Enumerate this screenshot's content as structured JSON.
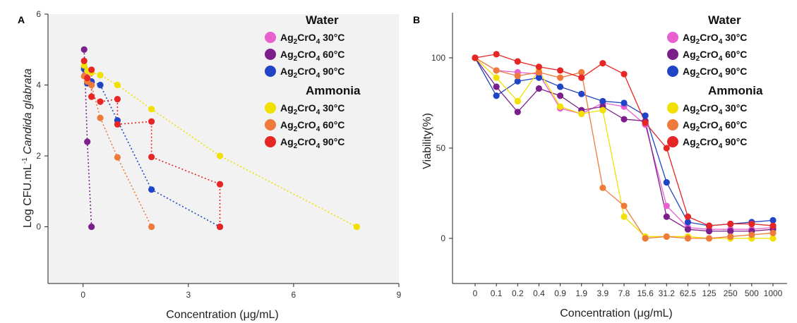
{
  "chart_data": [
    {
      "panel": "A",
      "type": "scatter",
      "xlabel": "Concentration (μg/mL)",
      "ylabel": "Log CFU.mL",
      "ylabel_sup": "-1",
      "ylabel_italic": "Candida glabrata",
      "xlim": [
        -1,
        9
      ],
      "ylim": [
        -1.6,
        6
      ],
      "xticks": [
        0,
        3,
        6,
        9
      ],
      "yticks": [
        0,
        2,
        4,
        6
      ],
      "grid": false,
      "legend_position": "top-right",
      "legend_groups": [
        {
          "title": "Water",
          "entries": [
            {
              "base": "Ag",
              "sub1": "2",
              "mid": "CrO",
              "sub2": "4",
              "temp": "30°C",
              "color": "#e85fcf"
            },
            {
              "base": "Ag",
              "sub1": "2",
              "mid": "CrO",
              "sub2": "4",
              "temp": "60°C",
              "color": "#7b1f8a"
            },
            {
              "base": "Ag",
              "sub1": "2",
              "mid": "CrO",
              "sub2": "4",
              "temp": "90°C",
              "color": "#1f44c6"
            }
          ]
        },
        {
          "title": "Ammonia",
          "entries": [
            {
              "base": "Ag",
              "sub1": "2",
              "mid": "CrO",
              "sub2": "4",
              "temp": "30°C",
              "color": "#f2e000"
            },
            {
              "base": "Ag",
              "sub1": "2",
              "mid": "CrO",
              "sub2": "4",
              "temp": "60°C",
              "color": "#ee7b3a"
            },
            {
              "base": "Ag",
              "sub1": "2",
              "mid": "CrO",
              "sub2": "4",
              "temp": "90°C",
              "color": "#e62525"
            }
          ]
        }
      ],
      "series": [
        {
          "color": "#e85fcf",
          "points": [
            [
              0.03,
              4.5
            ],
            [
              0.06,
              4.3
            ],
            [
              0.12,
              4.1
            ],
            [
              0.24,
              4.0
            ]
          ]
        },
        {
          "color": "#7b1f8a",
          "points": [
            [
              0.03,
              5.0
            ],
            [
              0.12,
              2.4
            ],
            [
              0.24,
              0.0
            ]
          ]
        },
        {
          "color": "#1f44c6",
          "points": [
            [
              0.03,
              4.45
            ],
            [
              0.12,
              4.05
            ],
            [
              0.24,
              4.1
            ],
            [
              0.49,
              4.0
            ],
            [
              0.98,
              3.0
            ],
            [
              1.95,
              1.05
            ],
            [
              3.9,
              0.0
            ]
          ]
        },
        {
          "color": "#f2e000",
          "points": [
            [
              0.03,
              4.55
            ],
            [
              0.12,
              4.4
            ],
            [
              0.24,
              4.35
            ],
            [
              0.49,
              4.28
            ],
            [
              0.98,
              4.0
            ],
            [
              1.95,
              3.32
            ],
            [
              3.9,
              2.0
            ],
            [
              7.8,
              0.0
            ]
          ]
        },
        {
          "color": "#ee7b3a",
          "points": [
            [
              0.03,
              4.25
            ],
            [
              0.12,
              4.1
            ],
            [
              0.24,
              4.0
            ],
            [
              0.49,
              3.07
            ],
            [
              0.98,
              1.96
            ],
            [
              1.95,
              0.0
            ]
          ]
        },
        {
          "color": "#e62525",
          "points": [
            [
              0.03,
              4.68
            ],
            [
              0.12,
              4.2
            ],
            [
              0.24,
              4.43
            ],
            [
              0.24,
              3.67
            ],
            [
              0.49,
              3.53
            ],
            [
              0.98,
              3.6
            ],
            [
              0.98,
              2.89
            ],
            [
              1.95,
              2.97
            ],
            [
              1.95,
              1.97
            ],
            [
              3.9,
              1.2
            ],
            [
              3.9,
              0.0
            ]
          ]
        }
      ]
    },
    {
      "panel": "B",
      "type": "line",
      "xlabel": "Concentration (μg/mL)",
      "ylabel": "Viability(%)",
      "categories": [
        "0",
        "0.1",
        "0.2",
        "0.4",
        "0.9",
        "1.9",
        "3.9",
        "7.8",
        "15.6",
        "31.2",
        "62.5",
        "125",
        "250",
        "500",
        "1000"
      ],
      "ylim": [
        -25,
        125
      ],
      "yticks": [
        0,
        50,
        100
      ],
      "grid": false,
      "legend_position": "top-right",
      "series": [
        {
          "color": "#e85fcf",
          "values": [
            100,
            93,
            92,
            91,
            72,
            69,
            75,
            73,
            63,
            18,
            6,
            5,
            5,
            5,
            6
          ]
        },
        {
          "color": "#7b1f8a",
          "values": [
            100,
            84,
            70,
            83,
            79,
            71,
            73,
            66,
            65,
            12,
            5,
            4,
            4,
            4,
            5
          ]
        },
        {
          "color": "#1f44c6",
          "values": [
            100,
            79,
            87,
            89,
            84,
            80,
            76,
            75,
            68,
            31,
            9,
            7,
            8,
            9,
            10
          ]
        },
        {
          "color": "#f2e000",
          "values": [
            100,
            89,
            76,
            93,
            73,
            69,
            71,
            12,
            1,
            1,
            1,
            0,
            0,
            0,
            0
          ]
        },
        {
          "color": "#ee7b3a",
          "values": [
            100,
            93,
            90,
            92,
            89,
            92,
            28,
            18,
            0,
            1,
            0,
            0,
            1,
            2,
            3
          ]
        },
        {
          "color": "#e62525",
          "values": [
            100,
            102,
            98,
            95,
            93,
            89,
            97,
            91,
            64,
            50,
            12,
            7,
            8,
            8,
            7
          ]
        }
      ]
    }
  ]
}
